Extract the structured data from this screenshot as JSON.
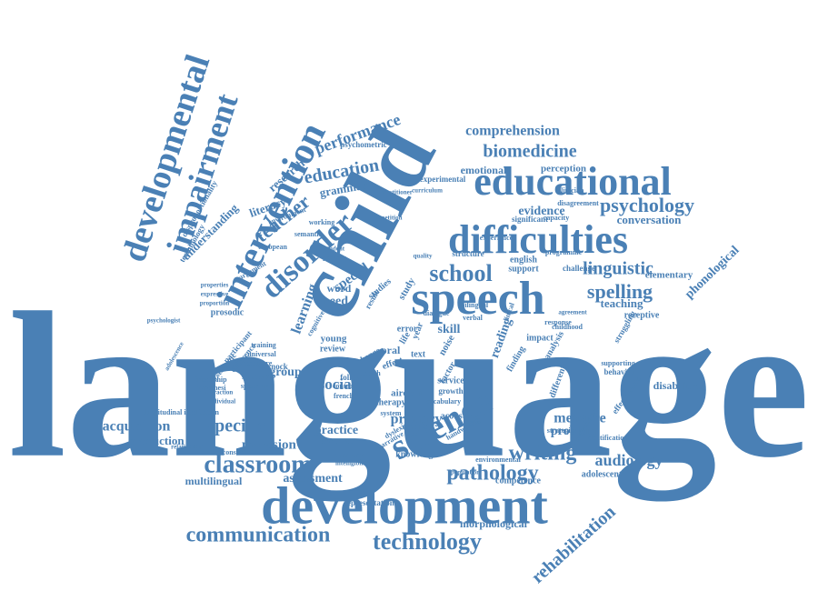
{
  "colors": {
    "word": "#4a80b5",
    "background": "#ffffff"
  },
  "words": [
    "language",
    "child",
    "development",
    "speech",
    "difficulties",
    "educational",
    "intervention",
    "developmental",
    "impairment",
    "disorder",
    "science",
    "school",
    "psychology",
    "classroom",
    "communication",
    "technology",
    "writing",
    "pathology",
    "spelling",
    "linguistic",
    "biomedicine",
    "comprehension",
    "performance",
    "education",
    "teacher",
    "audiology",
    "rehabilitation",
    "acquisition",
    "specific",
    "practice",
    "production",
    "provision",
    "assessment",
    "multilingual",
    "morphological",
    "phonological",
    "disabilities",
    "elementary",
    "conversation",
    "evidence",
    "emotional",
    "perception",
    "teaching",
    "receptive",
    "measure",
    "problem",
    "primary",
    "social",
    "group",
    "understanding",
    "learning",
    "literacy",
    "research",
    "grammar",
    "special",
    "need",
    "word",
    "young",
    "review",
    "oral",
    "skill",
    "reading",
    "impact",
    "english",
    "support",
    "structure",
    "experimental",
    "significant",
    "psychometric",
    "adolescent",
    "sentence",
    "memory",
    "representation",
    "emotion",
    "acoustic",
    "knowledge",
    "competence",
    "identification",
    "strategies",
    "effect",
    "text",
    "factor",
    "noise",
    "finding",
    "analysis",
    "different",
    "supporting",
    "behaviour",
    "effectiveness",
    "terminology",
    "disproportionality",
    "speaking",
    "prosodic",
    "friendship",
    "hypothesi",
    "spectrum",
    "exposure",
    "training",
    "universal",
    "narrative",
    "dyslexia",
    "handwriting",
    "environmental",
    "longitudinal implication",
    "relationship",
    "constraint",
    "therapy",
    "aircraft",
    "health",
    "control",
    "french",
    "service",
    "growth",
    "mainstream",
    "challenge",
    "programme",
    "response",
    "struggling",
    "semantic",
    "environment",
    "working",
    "european",
    "argument",
    "expressive",
    "proportion",
    "properties",
    "participant",
    "difference",
    "systematic",
    "quality",
    "practitioner",
    "repetition",
    "curriculum",
    "student",
    "phonetic",
    "verbal",
    "bilingual",
    "dialogue",
    "clinical",
    "psychologist",
    "adolescence",
    "interaction",
    "individual",
    "population",
    "intelligibility",
    "cognitive",
    "result",
    "studies",
    "study",
    "life",
    "year",
    "error",
    "change",
    "follow",
    "system",
    "vocabulary",
    "warnock",
    "agreement",
    "capacity",
    "childhood",
    "clinician",
    "disagreement",
    "experience"
  ]
}
